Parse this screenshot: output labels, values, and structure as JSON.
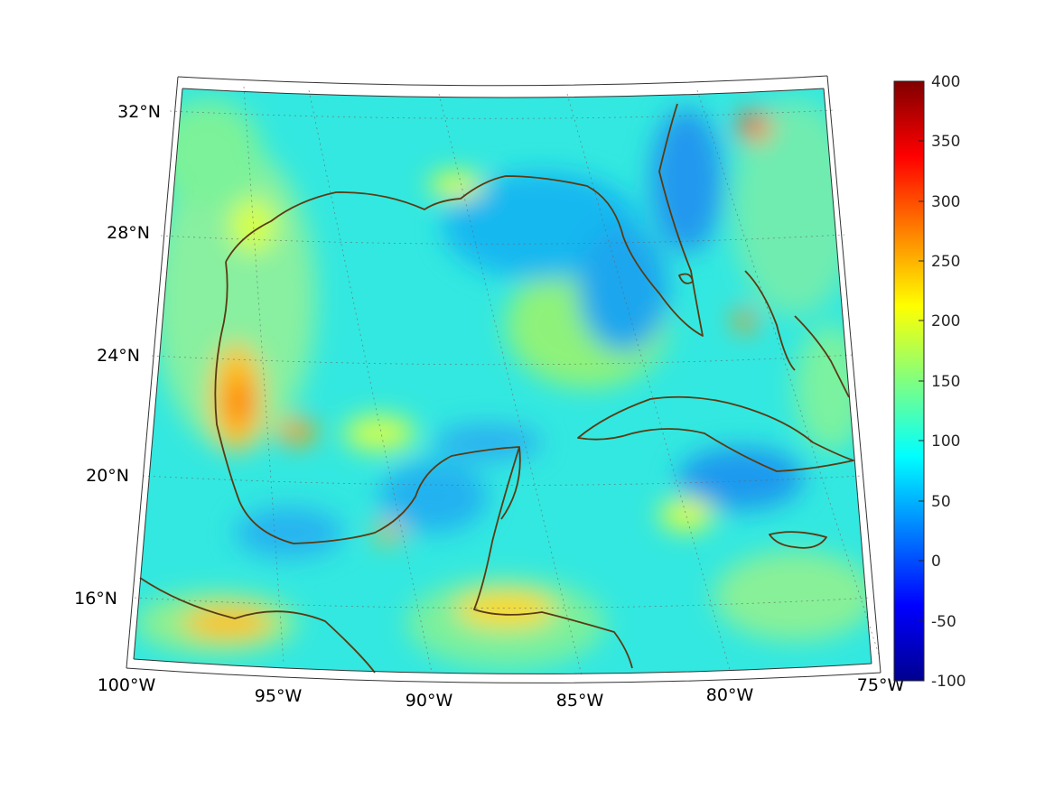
{
  "map": {
    "projection": "conic",
    "region": "Gulf of Mexico and Caribbean",
    "lon_range": [
      -100,
      -75
    ],
    "lat_range": [
      14,
      33
    ],
    "lon_tick_labels": [
      "100°W",
      "95°W",
      "90°W",
      "85°W",
      "80°W",
      "75°W"
    ],
    "lat_tick_labels": [
      "32°N",
      "28°N",
      "24°N",
      "20°N",
      "16°N"
    ],
    "grid": true,
    "coastline_color": "#5a3a12",
    "field_colormap": "jet"
  },
  "colorbar": {
    "orientation": "vertical",
    "placement": "right",
    "range": [
      -100,
      400
    ],
    "tick_labels": [
      "400",
      "350",
      "300",
      "250",
      "200",
      "150",
      "100",
      "50",
      "0",
      "-50",
      "-100"
    ],
    "colors": [
      "#00008f",
      "#0000ff",
      "#0080ff",
      "#00ffff",
      "#80ff80",
      "#ffff00",
      "#ff8000",
      "#ff0000",
      "#800000"
    ]
  }
}
